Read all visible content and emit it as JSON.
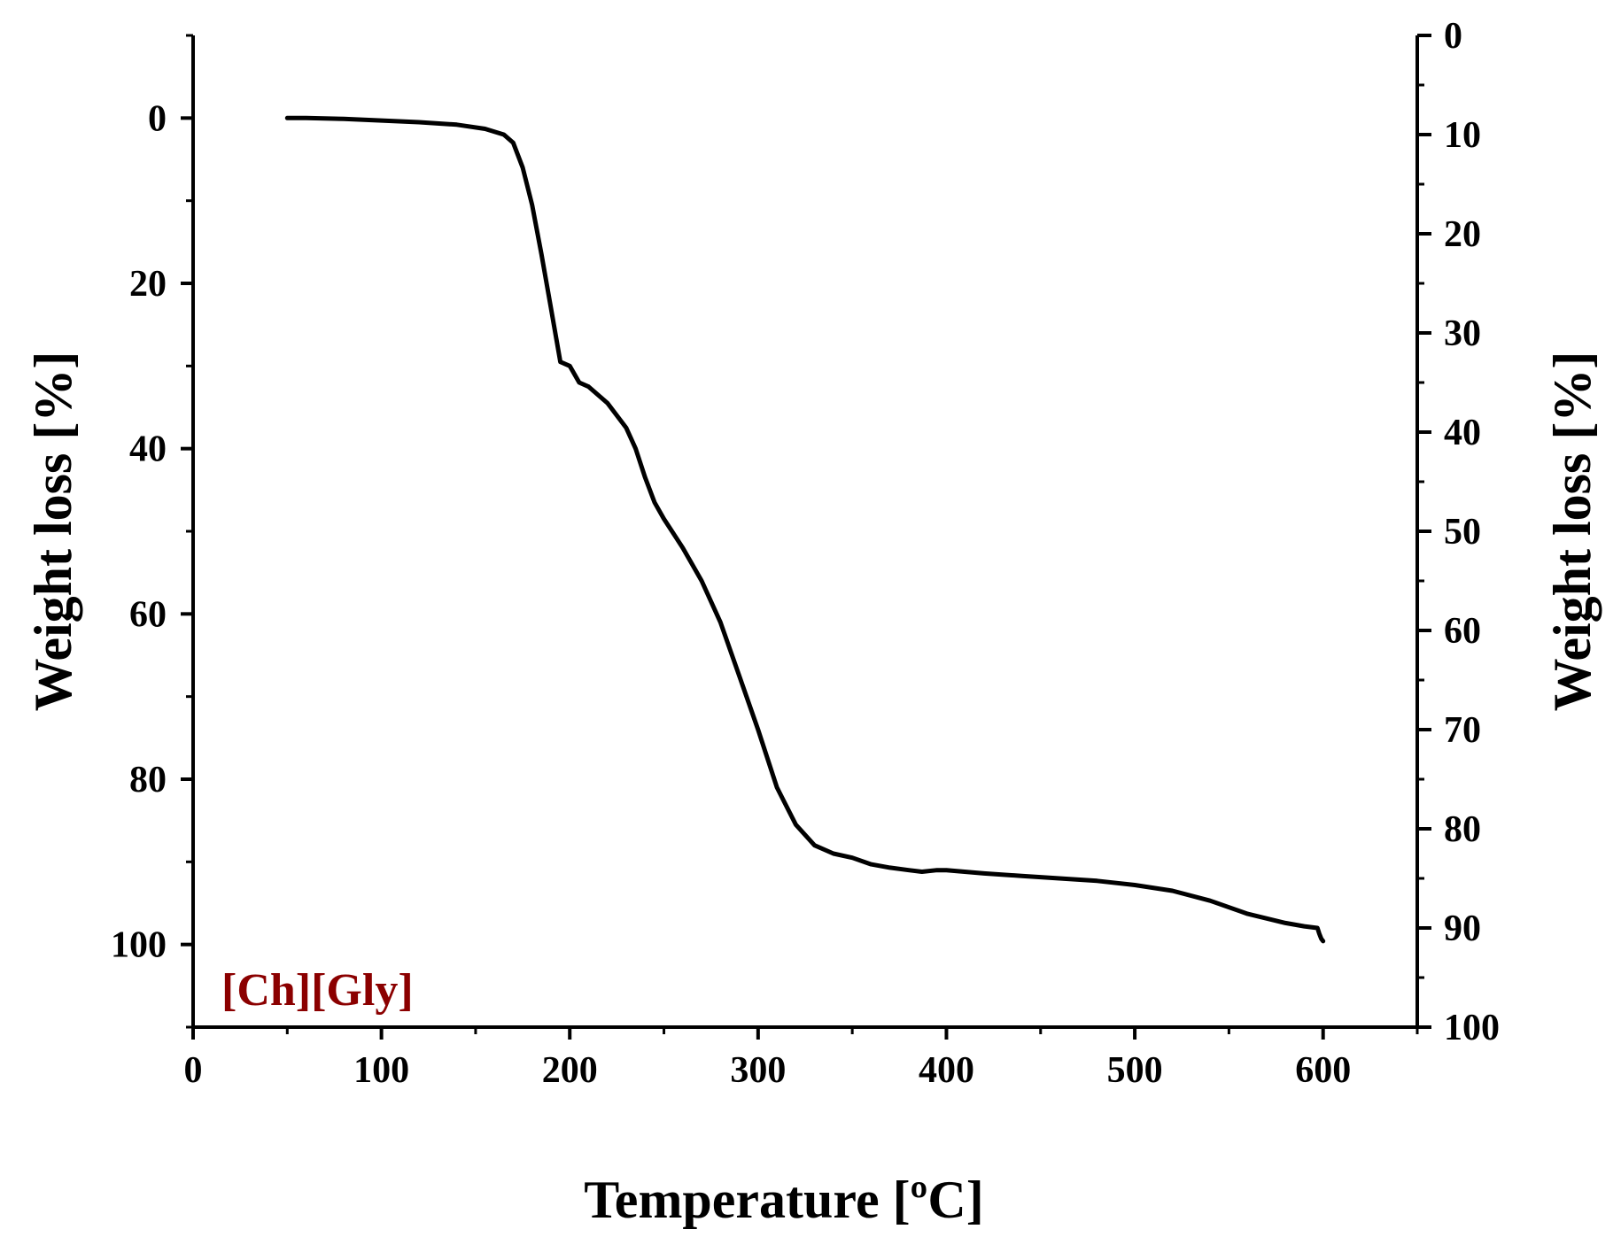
{
  "chart_data": {
    "type": "line",
    "title": "",
    "xlabel": "Temperature [ºC]",
    "ylabel": "Weight loss [%]",
    "ylabel_right": "Weight loss [%]",
    "xlim": [
      0,
      650
    ],
    "ylim": [
      -10,
      110
    ],
    "ylim_right": [
      0,
      100
    ],
    "y_inverted": true,
    "x_ticks": [
      0,
      100,
      200,
      300,
      400,
      500,
      600
    ],
    "x_tick_labels": [
      "0",
      "100",
      "200",
      "300",
      "400",
      "500",
      "600"
    ],
    "y_ticks": [
      0,
      20,
      40,
      60,
      80,
      100
    ],
    "y_tick_labels": [
      "0",
      "20",
      "40",
      "60",
      "80",
      "100"
    ],
    "y_right_ticks": [
      0,
      10,
      20,
      30,
      40,
      50,
      60,
      70,
      80,
      90,
      100
    ],
    "y_right_tick_labels": [
      "0",
      "10",
      "20",
      "30",
      "40",
      "50",
      "60",
      "70",
      "80",
      "90",
      "100"
    ],
    "grid": false,
    "annotation": "[Ch][Gly]",
    "annotation_color": "#8b0000",
    "line_color": "#000000",
    "series": [
      {
        "x": [
          50,
          60,
          80,
          100,
          120,
          140,
          155,
          165,
          170,
          175,
          180,
          185,
          190,
          195,
          200,
          205,
          210,
          220,
          230,
          235,
          240,
          245,
          250,
          260,
          270,
          280,
          290,
          300,
          310,
          320,
          330,
          340,
          350,
          360,
          370,
          380,
          387,
          395,
          400,
          420,
          440,
          460,
          480,
          500,
          520,
          540,
          560,
          580,
          590,
          597,
          598,
          599,
          600
        ],
        "y": [
          0,
          0,
          0.1,
          0.3,
          0.5,
          0.8,
          1.3,
          2.0,
          3.0,
          6.0,
          10.5,
          16.5,
          23.0,
          29.5,
          30.0,
          32.0,
          32.5,
          34.5,
          37.5,
          40.0,
          43.5,
          46.5,
          48.5,
          52.0,
          56.0,
          61.0,
          67.5,
          74.0,
          81.0,
          85.5,
          88.0,
          89.0,
          89.5,
          90.3,
          90.7,
          91.0,
          91.2,
          91.0,
          91.0,
          91.4,
          91.7,
          92.0,
          92.3,
          92.8,
          93.5,
          94.7,
          96.3,
          97.4,
          97.8,
          98.0,
          98.7,
          99.3,
          99.6
        ]
      }
    ]
  }
}
